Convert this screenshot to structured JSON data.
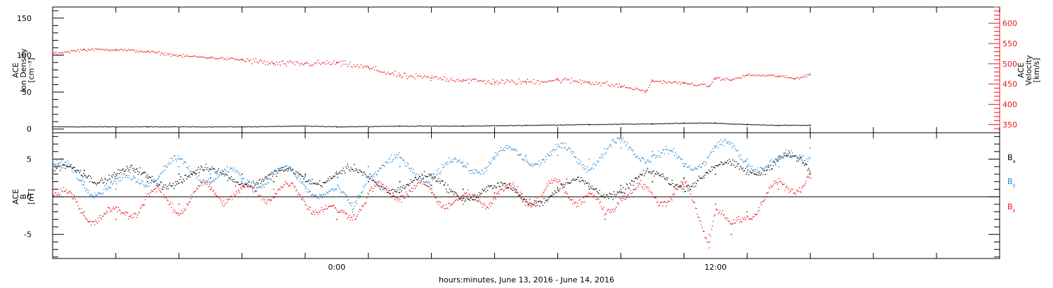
{
  "figure": {
    "xlabel": "hours:minutes, June 13, 2016 - June 14, 2016",
    "x_ticks": [
      {
        "hour": 0,
        "label": "0:00"
      },
      {
        "hour": 12,
        "label": "12:00"
      }
    ],
    "x_range_hours": [
      -9,
      21
    ],
    "data_end_hour": 15.0
  },
  "chart_data": [
    {
      "type": "scatter",
      "panel": "top",
      "ylabel_left": [
        "ACE",
        "Ion Density",
        "[cm⁻³]"
      ],
      "ylabel_right": [
        "ACE",
        "Velocity",
        "[km/s]"
      ],
      "y_left_range": [
        -5,
        165
      ],
      "y_left_ticks": [
        0,
        50,
        100,
        150
      ],
      "y_right_range": [
        330,
        640
      ],
      "y_right_ticks": [
        350,
        400,
        450,
        500,
        550,
        600
      ],
      "colors": {
        "density": "#000000",
        "velocity": "#e8141c"
      },
      "series": [
        {
          "name": "Ion Density",
          "axis": "left",
          "color": "#000000",
          "x_hours": [
            -9,
            -6,
            -3,
            -1,
            0,
            2,
            4,
            6,
            8,
            10,
            11,
            12,
            13,
            14,
            15
          ],
          "values": [
            3,
            3,
            3,
            4,
            3,
            4,
            4,
            5,
            6,
            7,
            8,
            8,
            6,
            5,
            5
          ]
        },
        {
          "name": "Velocity",
          "axis": "right",
          "color": "#e8141c",
          "x_hours": [
            -9,
            -8,
            -7,
            -6,
            -5,
            -4,
            -3,
            -2,
            -1,
            0,
            1,
            2,
            3,
            4,
            5,
            6,
            7,
            8,
            9,
            9.8,
            10,
            11,
            11.8,
            12,
            12.5,
            13,
            14,
            14.5,
            15
          ],
          "values": [
            525,
            535,
            535,
            530,
            520,
            515,
            510,
            500,
            500,
            502,
            490,
            470,
            465,
            460,
            455,
            455,
            460,
            455,
            445,
            432,
            458,
            452,
            445,
            465,
            460,
            472,
            470,
            463,
            474
          ]
        }
      ]
    },
    {
      "type": "scatter",
      "panel": "bottom",
      "ylabel_left": [
        "ACE",
        "B",
        "[nT]"
      ],
      "y_range": [
        -8.2,
        8.5
      ],
      "y_ticks": [
        -5,
        0,
        5
      ],
      "zero_line": true,
      "series": [
        {
          "name": "B",
          "subscript": "x",
          "color": "#000000",
          "x_hours": [
            -9,
            -8,
            -7,
            -6,
            -5,
            -4,
            -3,
            -2,
            -1,
            0,
            1,
            2,
            3,
            4,
            5,
            6,
            7,
            8,
            9,
            10,
            11,
            12,
            13,
            14,
            15
          ],
          "values": [
            2.5,
            3.5,
            3,
            2,
            3,
            2.5,
            3,
            2,
            3,
            3,
            2,
            2,
            1.5,
            1,
            0.5,
            0,
            1,
            1,
            1.5,
            2,
            2.5,
            3,
            4,
            5,
            3
          ]
        },
        {
          "name": "B",
          "subscript": "y",
          "color": "#1f86d6",
          "x_hours": [
            -9,
            -8,
            -7,
            -6,
            -5,
            -4,
            -3,
            -2,
            -1,
            0,
            0.5,
            1,
            2,
            3,
            4,
            5,
            6,
            7,
            8,
            9,
            10,
            11,
            12,
            13,
            14,
            15
          ],
          "values": [
            4,
            2,
            1,
            3,
            4,
            3,
            2,
            3,
            2,
            0,
            -2,
            4,
            4,
            3,
            4,
            5,
            5.5,
            5.5,
            5,
            6.5,
            6,
            4,
            6.5,
            5,
            4,
            6.5
          ]
        },
        {
          "name": "B",
          "subscript": "z",
          "color": "#e8141c",
          "x_hours": [
            -9,
            -8,
            -7,
            -6,
            -5,
            -4,
            -3,
            -2,
            -1,
            0,
            1,
            2,
            3,
            4,
            5,
            6,
            7,
            8,
            8.5,
            9,
            10,
            11,
            11.8,
            12,
            12.5,
            13,
            14,
            15
          ],
          "values": [
            1,
            -2,
            -3,
            0,
            -1,
            1,
            0,
            1,
            0,
            -3,
            0,
            1,
            0.5,
            -1,
            0.5,
            0,
            1,
            0,
            -3,
            1,
            0,
            1,
            -5,
            -1,
            -5,
            -2,
            1,
            2.5
          ]
        }
      ]
    }
  ]
}
